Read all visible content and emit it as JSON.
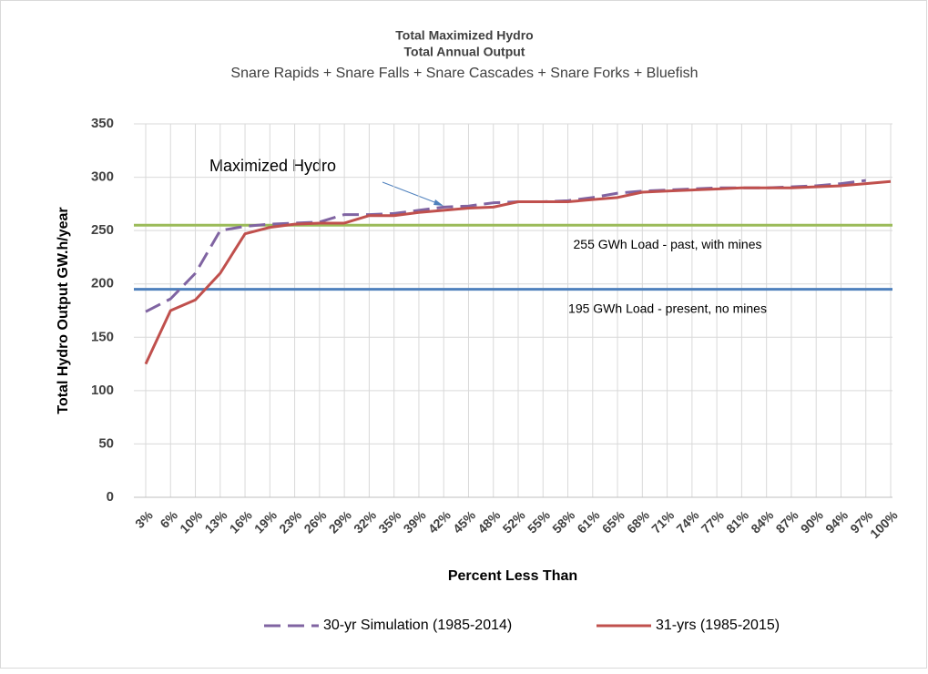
{
  "chart_data": {
    "type": "line",
    "title": "Total Maximized Hydro",
    "subtitle": "Total Annual Output",
    "subtitle2": "Snare Rapids + Snare Falls + Snare Cascades + Snare Forks + Bluefish",
    "x_label": "Percent Less Than",
    "y_label": "Total Hydro Output GW.h/year",
    "annotation": "Maximized Hydro",
    "categories": [
      "3%",
      "6%",
      "10%",
      "13%",
      "16%",
      "19%",
      "23%",
      "26%",
      "29%",
      "32%",
      "35%",
      "39%",
      "42%",
      "45%",
      "48%",
      "52%",
      "55%",
      "58%",
      "61%",
      "65%",
      "68%",
      "71%",
      "74%",
      "77%",
      "81%",
      "84%",
      "87%",
      "90%",
      "94%",
      "97%",
      "100%"
    ],
    "series": [
      {
        "name": "30-yr Simulation  (1985-2014)",
        "color": "#8064a2",
        "dashed": true,
        "values": [
          174,
          186,
          210,
          250,
          254,
          256,
          257,
          258,
          265,
          265,
          266,
          269,
          272,
          273,
          276,
          277,
          277,
          278,
          281,
          285,
          287,
          288,
          289,
          290,
          290,
          290,
          291,
          292,
          294,
          297,
          null
        ]
      },
      {
        "name": "31-yrs (1985-2015)",
        "color": "#c0504d",
        "dashed": false,
        "values": [
          125,
          175,
          185,
          210,
          247,
          253,
          256,
          257,
          257,
          264,
          264,
          267,
          269,
          271,
          272,
          277,
          277,
          277,
          279,
          281,
          286,
          287,
          288,
          289,
          290,
          290,
          290,
          291,
          292,
          294,
          296
        ]
      }
    ],
    "reference_lines": [
      {
        "value": 255,
        "label": "255 GWh Load - past, with mines",
        "color": "#9bbb59"
      },
      {
        "value": 195,
        "label": "195 GWh Load - present, no mines",
        "color": "#4f81bd"
      }
    ],
    "ylim": [
      0,
      350
    ],
    "yticks": [
      0,
      50,
      100,
      150,
      200,
      250,
      300,
      350
    ],
    "grid": true
  }
}
